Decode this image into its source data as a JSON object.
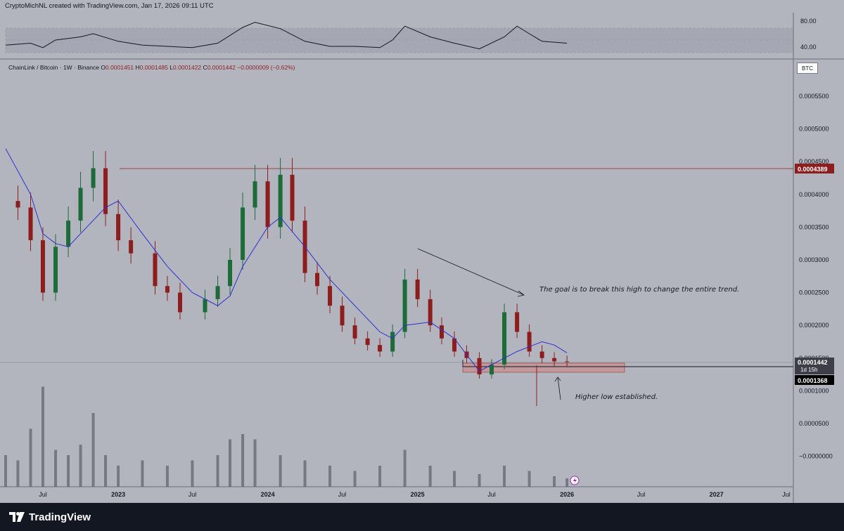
{
  "header": {
    "author_line": "CryptoMichNL created with TradingView.com, Jan 17, 2026 09:11 UTC"
  },
  "legend": {
    "symbol": "ChainLink / Bitcoin · 1W · Binance",
    "open_label": "O",
    "open": "0.0001451",
    "high_label": "H",
    "high": "0.0001485",
    "low_label": "L",
    "low": "0.0001422",
    "close_label": "C",
    "close": "0.0001442",
    "change": "−0.0000009 (−0.62%)"
  },
  "currency_badge": "BTC",
  "footer": {
    "brand": "TradingView"
  },
  "colors": {
    "background": "#b2b5be",
    "bullish": "#1e6b3a",
    "bearish": "#8e1e1e",
    "ma_line": "#3030d0",
    "resistance_line": "#8e1e1e",
    "footer_bg": "#131722"
  },
  "icons": {
    "brand_logo": "tradingview-logo-icon",
    "alert": "lightning-icon"
  },
  "chart_data": {
    "type": "candlestick",
    "timeframe": "1W",
    "x_ticks": [
      "Jul",
      "2023",
      "Jul",
      "2024",
      "Jul",
      "2025",
      "Jul",
      "2026",
      "Jul",
      "2027",
      "Jul"
    ],
    "x_range": [
      "2022-04",
      "2027-07"
    ],
    "y_ticks": [
      "0.0005500",
      "0.0005000",
      "0.0004500",
      "0.0004000",
      "0.0003500",
      "0.0003000",
      "0.0002500",
      "0.0002000",
      "0.0001500",
      "0.0001000",
      "0.0000500",
      "−0.0000000"
    ],
    "y_range": [
      -1e-05,
      0.0006
    ],
    "price_tags": [
      {
        "label": "0.0004389",
        "value": 0.0004389,
        "style": "red"
      },
      {
        "label": "0.0001442",
        "value": 0.0001442,
        "style": "dark",
        "sub": "1d 15h"
      },
      {
        "label": "0.0001368",
        "value": 0.0001368,
        "style": "black"
      }
    ],
    "resistance_level": 0.0004389,
    "current_price": 0.0001442,
    "support_level": 0.0001368,
    "ma_series": [
      {
        "date": "2022-04",
        "value": 0.00047
      },
      {
        "date": "2022-06",
        "value": 0.0004
      },
      {
        "date": "2022-07",
        "value": 0.00034
      },
      {
        "date": "2022-08",
        "value": 0.000325
      },
      {
        "date": "2022-09",
        "value": 0.00032
      },
      {
        "date": "2022-10",
        "value": 0.00034
      },
      {
        "date": "2022-12",
        "value": 0.00038
      },
      {
        "date": "2023-01",
        "value": 0.00039
      },
      {
        "date": "2023-03",
        "value": 0.00034
      },
      {
        "date": "2023-05",
        "value": 0.00029
      },
      {
        "date": "2023-07",
        "value": 0.00025
      },
      {
        "date": "2023-09",
        "value": 0.00023
      },
      {
        "date": "2023-10",
        "value": 0.000245
      },
      {
        "date": "2023-11",
        "value": 0.00029
      },
      {
        "date": "2024-01",
        "value": 0.00035
      },
      {
        "date": "2024-02",
        "value": 0.000365
      },
      {
        "date": "2024-04",
        "value": 0.00032
      },
      {
        "date": "2024-06",
        "value": 0.00027
      },
      {
        "date": "2024-08",
        "value": 0.00023
      },
      {
        "date": "2024-10",
        "value": 0.00019
      },
      {
        "date": "2024-11",
        "value": 0.00018
      },
      {
        "date": "2024-12",
        "value": 0.0002
      },
      {
        "date": "2025-02",
        "value": 0.000205
      },
      {
        "date": "2025-04",
        "value": 0.00018
      },
      {
        "date": "2025-05",
        "value": 0.000155
      },
      {
        "date": "2025-06",
        "value": 0.00013
      },
      {
        "date": "2025-07",
        "value": 0.00014
      },
      {
        "date": "2025-08",
        "value": 0.00015
      },
      {
        "date": "2025-09",
        "value": 0.00016
      },
      {
        "date": "2025-11",
        "value": 0.000175
      },
      {
        "date": "2025-12",
        "value": 0.00017
      },
      {
        "date": "2026-01",
        "value": 0.000158
      }
    ],
    "price_series": [
      {
        "date": "2022-04",
        "value": 0.00039
      },
      {
        "date": "2022-05",
        "value": 0.00038
      },
      {
        "date": "2022-06",
        "value": 0.00033
      },
      {
        "date": "2022-07",
        "value": 0.00025
      },
      {
        "date": "2022-08",
        "value": 0.00032
      },
      {
        "date": "2022-09",
        "value": 0.00036
      },
      {
        "date": "2022-10",
        "value": 0.00041
      },
      {
        "date": "2022-11",
        "value": 0.00044
      },
      {
        "date": "2022-12",
        "value": 0.00037
      },
      {
        "date": "2023-01",
        "value": 0.00033
      },
      {
        "date": "2023-02",
        "value": 0.00031
      },
      {
        "date": "2023-04",
        "value": 0.00026
      },
      {
        "date": "2023-05",
        "value": 0.00025
      },
      {
        "date": "2023-06",
        "value": 0.00022
      },
      {
        "date": "2023-08",
        "value": 0.00024
      },
      {
        "date": "2023-09",
        "value": 0.00026
      },
      {
        "date": "2023-10",
        "value": 0.0003
      },
      {
        "date": "2023-11",
        "value": 0.00038
      },
      {
        "date": "2023-12",
        "value": 0.00042
      },
      {
        "date": "2024-01",
        "value": 0.00035
      },
      {
        "date": "2024-02",
        "value": 0.00043
      },
      {
        "date": "2024-03",
        "value": 0.00036
      },
      {
        "date": "2024-04",
        "value": 0.00028
      },
      {
        "date": "2024-05",
        "value": 0.00026
      },
      {
        "date": "2024-06",
        "value": 0.00023
      },
      {
        "date": "2024-07",
        "value": 0.0002
      },
      {
        "date": "2024-08",
        "value": 0.00018
      },
      {
        "date": "2024-09",
        "value": 0.00017
      },
      {
        "date": "2024-10",
        "value": 0.00016
      },
      {
        "date": "2024-11",
        "value": 0.00019
      },
      {
        "date": "2024-12",
        "value": 0.00027
      },
      {
        "date": "2025-01",
        "value": 0.00024
      },
      {
        "date": "2025-02",
        "value": 0.0002
      },
      {
        "date": "2025-03",
        "value": 0.00018
      },
      {
        "date": "2025-04",
        "value": 0.00016
      },
      {
        "date": "2025-05",
        "value": 0.00015
      },
      {
        "date": "2025-06",
        "value": 0.000125
      },
      {
        "date": "2025-07",
        "value": 0.00014
      },
      {
        "date": "2025-08",
        "value": 0.00022
      },
      {
        "date": "2025-09",
        "value": 0.00019
      },
      {
        "date": "2025-10",
        "value": 0.00016
      },
      {
        "date": "2025-11",
        "value": 0.00015
      },
      {
        "date": "2025-12",
        "value": 0.000145
      },
      {
        "date": "2026-01",
        "value": 0.0001442
      }
    ],
    "rsi": {
      "y_ticks": [
        "80.00",
        "40.00"
      ],
      "band": [
        30,
        70
      ],
      "series": [
        {
          "date": "2022-04",
          "value": 42
        },
        {
          "date": "2022-06",
          "value": 45
        },
        {
          "date": "2022-07",
          "value": 38
        },
        {
          "date": "2022-08",
          "value": 50
        },
        {
          "date": "2022-10",
          "value": 55
        },
        {
          "date": "2022-11",
          "value": 60
        },
        {
          "date": "2023-01",
          "value": 48
        },
        {
          "date": "2023-03",
          "value": 42
        },
        {
          "date": "2023-05",
          "value": 40
        },
        {
          "date": "2023-07",
          "value": 38
        },
        {
          "date": "2023-09",
          "value": 45
        },
        {
          "date": "2023-11",
          "value": 70
        },
        {
          "date": "2023-12",
          "value": 78
        },
        {
          "date": "2024-02",
          "value": 68
        },
        {
          "date": "2024-04",
          "value": 48
        },
        {
          "date": "2024-06",
          "value": 40
        },
        {
          "date": "2024-08",
          "value": 40
        },
        {
          "date": "2024-10",
          "value": 38
        },
        {
          "date": "2024-11",
          "value": 50
        },
        {
          "date": "2024-12",
          "value": 72
        },
        {
          "date": "2025-02",
          "value": 55
        },
        {
          "date": "2025-04",
          "value": 45
        },
        {
          "date": "2025-06",
          "value": 36
        },
        {
          "date": "2025-08",
          "value": 55
        },
        {
          "date": "2025-09",
          "value": 72
        },
        {
          "date": "2025-10",
          "value": 60
        },
        {
          "date": "2025-11",
          "value": 48
        },
        {
          "date": "2026-01",
          "value": 45
        }
      ]
    },
    "volume": [
      {
        "date": "2022-04",
        "value": 0.3
      },
      {
        "date": "2022-05",
        "value": 0.25
      },
      {
        "date": "2022-06",
        "value": 0.55
      },
      {
        "date": "2022-07",
        "value": 0.95
      },
      {
        "date": "2022-08",
        "value": 0.35
      },
      {
        "date": "2022-09",
        "value": 0.3
      },
      {
        "date": "2022-10",
        "value": 0.4
      },
      {
        "date": "2022-11",
        "value": 0.7
      },
      {
        "date": "2022-12",
        "value": 0.3
      },
      {
        "date": "2023-01",
        "value": 0.2
      },
      {
        "date": "2023-03",
        "value": 0.25
      },
      {
        "date": "2023-05",
        "value": 0.2
      },
      {
        "date": "2023-07",
        "value": 0.25
      },
      {
        "date": "2023-09",
        "value": 0.3
      },
      {
        "date": "2023-10",
        "value": 0.45
      },
      {
        "date": "2023-11",
        "value": 0.5
      },
      {
        "date": "2023-12",
        "value": 0.45
      },
      {
        "date": "2024-02",
        "value": 0.3
      },
      {
        "date": "2024-04",
        "value": 0.25
      },
      {
        "date": "2024-06",
        "value": 0.2
      },
      {
        "date": "2024-08",
        "value": 0.15
      },
      {
        "date": "2024-10",
        "value": 0.2
      },
      {
        "date": "2024-12",
        "value": 0.35
      },
      {
        "date": "2025-02",
        "value": 0.2
      },
      {
        "date": "2025-04",
        "value": 0.15
      },
      {
        "date": "2025-06",
        "value": 0.12
      },
      {
        "date": "2025-08",
        "value": 0.2
      },
      {
        "date": "2025-10",
        "value": 0.15
      },
      {
        "date": "2025-12",
        "value": 0.1
      },
      {
        "date": "2026-01",
        "value": 0.08
      }
    ],
    "annotations": [
      {
        "text": "The goal is to break this high to change the entire trend."
      },
      {
        "text": "Higher low established."
      }
    ]
  }
}
